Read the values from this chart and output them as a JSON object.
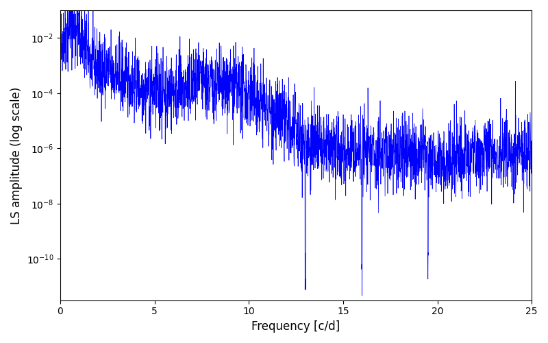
{
  "title": "",
  "xlabel": "Frequency [c/d]",
  "ylabel": "LS amplitude (log scale)",
  "line_color": "#0000ff",
  "xlim": [
    0,
    25
  ],
  "ylim_log": [
    -11.5,
    -1.0
  ],
  "background_color": "#ffffff",
  "figsize": [
    8.0,
    5.0
  ],
  "dpi": 100,
  "seed": 42,
  "n_points": 3000,
  "freq_max": 25.0
}
